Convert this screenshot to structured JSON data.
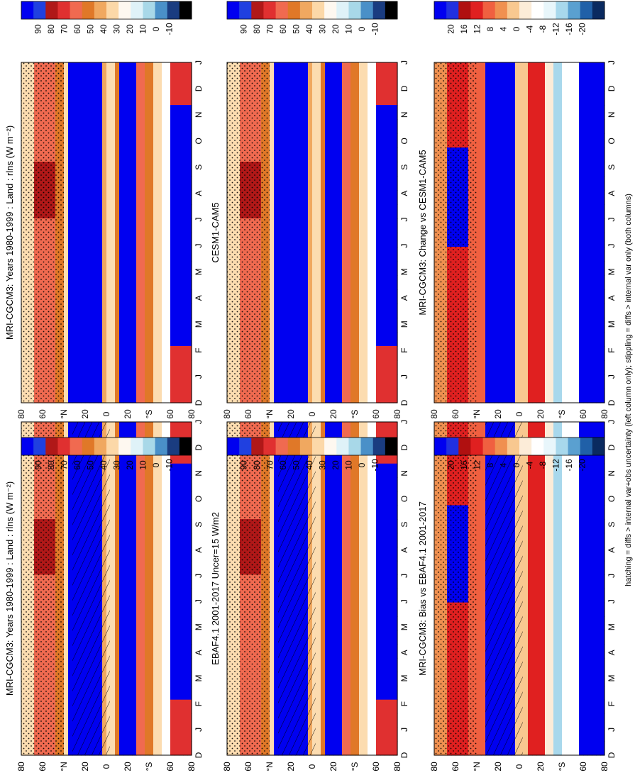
{
  "figure": {
    "footnote": "hatching = diffs > internal var+obs uncertainty (left column only); stippling = diffs > internal var only (both columns)"
  },
  "chart_data": [
    {
      "type": "heatmap",
      "id": "mri-clim-left",
      "title": "MRI-CGCM3: Years 1980-1999 : Land : rlns (W m⁻²)",
      "x_ticks": [
        "D",
        "J",
        "F",
        "M",
        "A",
        "M",
        "J",
        "J",
        "A",
        "S",
        "O",
        "N",
        "D",
        "J"
      ],
      "y_ticks": [
        "80",
        "60",
        "°N",
        "20",
        "0",
        "20",
        "°S",
        "60",
        "80"
      ],
      "colorbar": {
        "labels": [
          "90",
          "80",
          "70",
          "60",
          "50",
          "40",
          "30",
          "20",
          "10",
          "0",
          "-10"
        ],
        "colors": [
          "#2020e8",
          "#1030d8",
          "#a01010",
          "#d02020",
          "#f06040",
          "#e07020",
          "#f0a050",
          "#fcdcb0",
          "#e8f4f8",
          "#90c8e0",
          "#3070b0",
          "#102050"
        ]
      },
      "hatching": true,
      "stippling": true
    },
    {
      "type": "heatmap",
      "id": "mri-clim-right",
      "title": "MRI-CGCM3: Years 1980-1999 : Land : rlns (W m⁻²)",
      "x_ticks": [
        "D",
        "J",
        "F",
        "M",
        "A",
        "M",
        "J",
        "J",
        "A",
        "S",
        "O",
        "N",
        "D",
        "J"
      ],
      "y_ticks": [
        "80",
        "60",
        "°N",
        "20",
        "0",
        "20",
        "°S",
        "60",
        "80"
      ],
      "colorbar": {
        "labels": [
          "90",
          "80",
          "70",
          "60",
          "50",
          "40",
          "30",
          "20",
          "10",
          "0",
          "-10"
        ]
      },
      "hatching": false,
      "stippling": true
    },
    {
      "type": "heatmap",
      "id": "ebaf-obs",
      "title": "EBAF4.1 2001-2017 Uncer=15 W/m2",
      "x_ticks": [
        "D",
        "J",
        "F",
        "M",
        "A",
        "M",
        "J",
        "J",
        "A",
        "S",
        "O",
        "N",
        "D",
        "J"
      ],
      "y_ticks": [
        "80",
        "60",
        "°N",
        "20",
        "0",
        "20",
        "°S",
        "60",
        "80"
      ],
      "colorbar": {
        "labels": [
          "90",
          "80",
          "70",
          "60",
          "50",
          "40",
          "30",
          "20",
          "10",
          "0",
          "-10"
        ]
      },
      "hatching": true,
      "stippling": true
    },
    {
      "type": "heatmap",
      "id": "cesm-ref",
      "title": "CESM1-CAM5",
      "x_ticks": [
        "D",
        "J",
        "F",
        "M",
        "A",
        "M",
        "J",
        "J",
        "A",
        "S",
        "O",
        "N",
        "D",
        "J"
      ],
      "y_ticks": [
        "80",
        "60",
        "°N",
        "20",
        "0",
        "20",
        "°S",
        "60",
        "80"
      ],
      "colorbar": {
        "labels": [
          "90",
          "80",
          "70",
          "60",
          "50",
          "40",
          "30",
          "20",
          "10",
          "0",
          "-10"
        ]
      },
      "hatching": false,
      "stippling": true
    },
    {
      "type": "heatmap",
      "id": "mri-bias",
      "title": "MRI-CGCM3: Bias vs EBAF4.1 2001-2017",
      "x_ticks": [
        "D",
        "J",
        "F",
        "M",
        "A",
        "M",
        "J",
        "J",
        "A",
        "S",
        "O",
        "N",
        "D",
        "J"
      ],
      "y_ticks": [
        "80",
        "60",
        "°N",
        "20",
        "0",
        "20",
        "°S",
        "60",
        "80"
      ],
      "colorbar": {
        "labels": [
          "20",
          "16",
          "12",
          "8",
          "4",
          "0",
          "-4",
          "-8",
          "-12",
          "-16",
          "-20"
        ]
      },
      "hatching": true,
      "stippling": true
    },
    {
      "type": "heatmap",
      "id": "mri-change",
      "title": "MRI-CGCM3: Change vs CESM1-CAM5",
      "x_ticks": [
        "D",
        "J",
        "F",
        "M",
        "A",
        "M",
        "J",
        "J",
        "A",
        "S",
        "O",
        "N",
        "D",
        "J"
      ],
      "y_ticks": [
        "80",
        "60",
        "°N",
        "20",
        "0",
        "20",
        "°S",
        "60",
        "80"
      ],
      "colorbar": {
        "labels": [
          "20",
          "16",
          "12",
          "8",
          "4",
          "0",
          "-4",
          "-8",
          "-12",
          "-16",
          "-20"
        ]
      },
      "hatching": false,
      "stippling": true
    }
  ]
}
